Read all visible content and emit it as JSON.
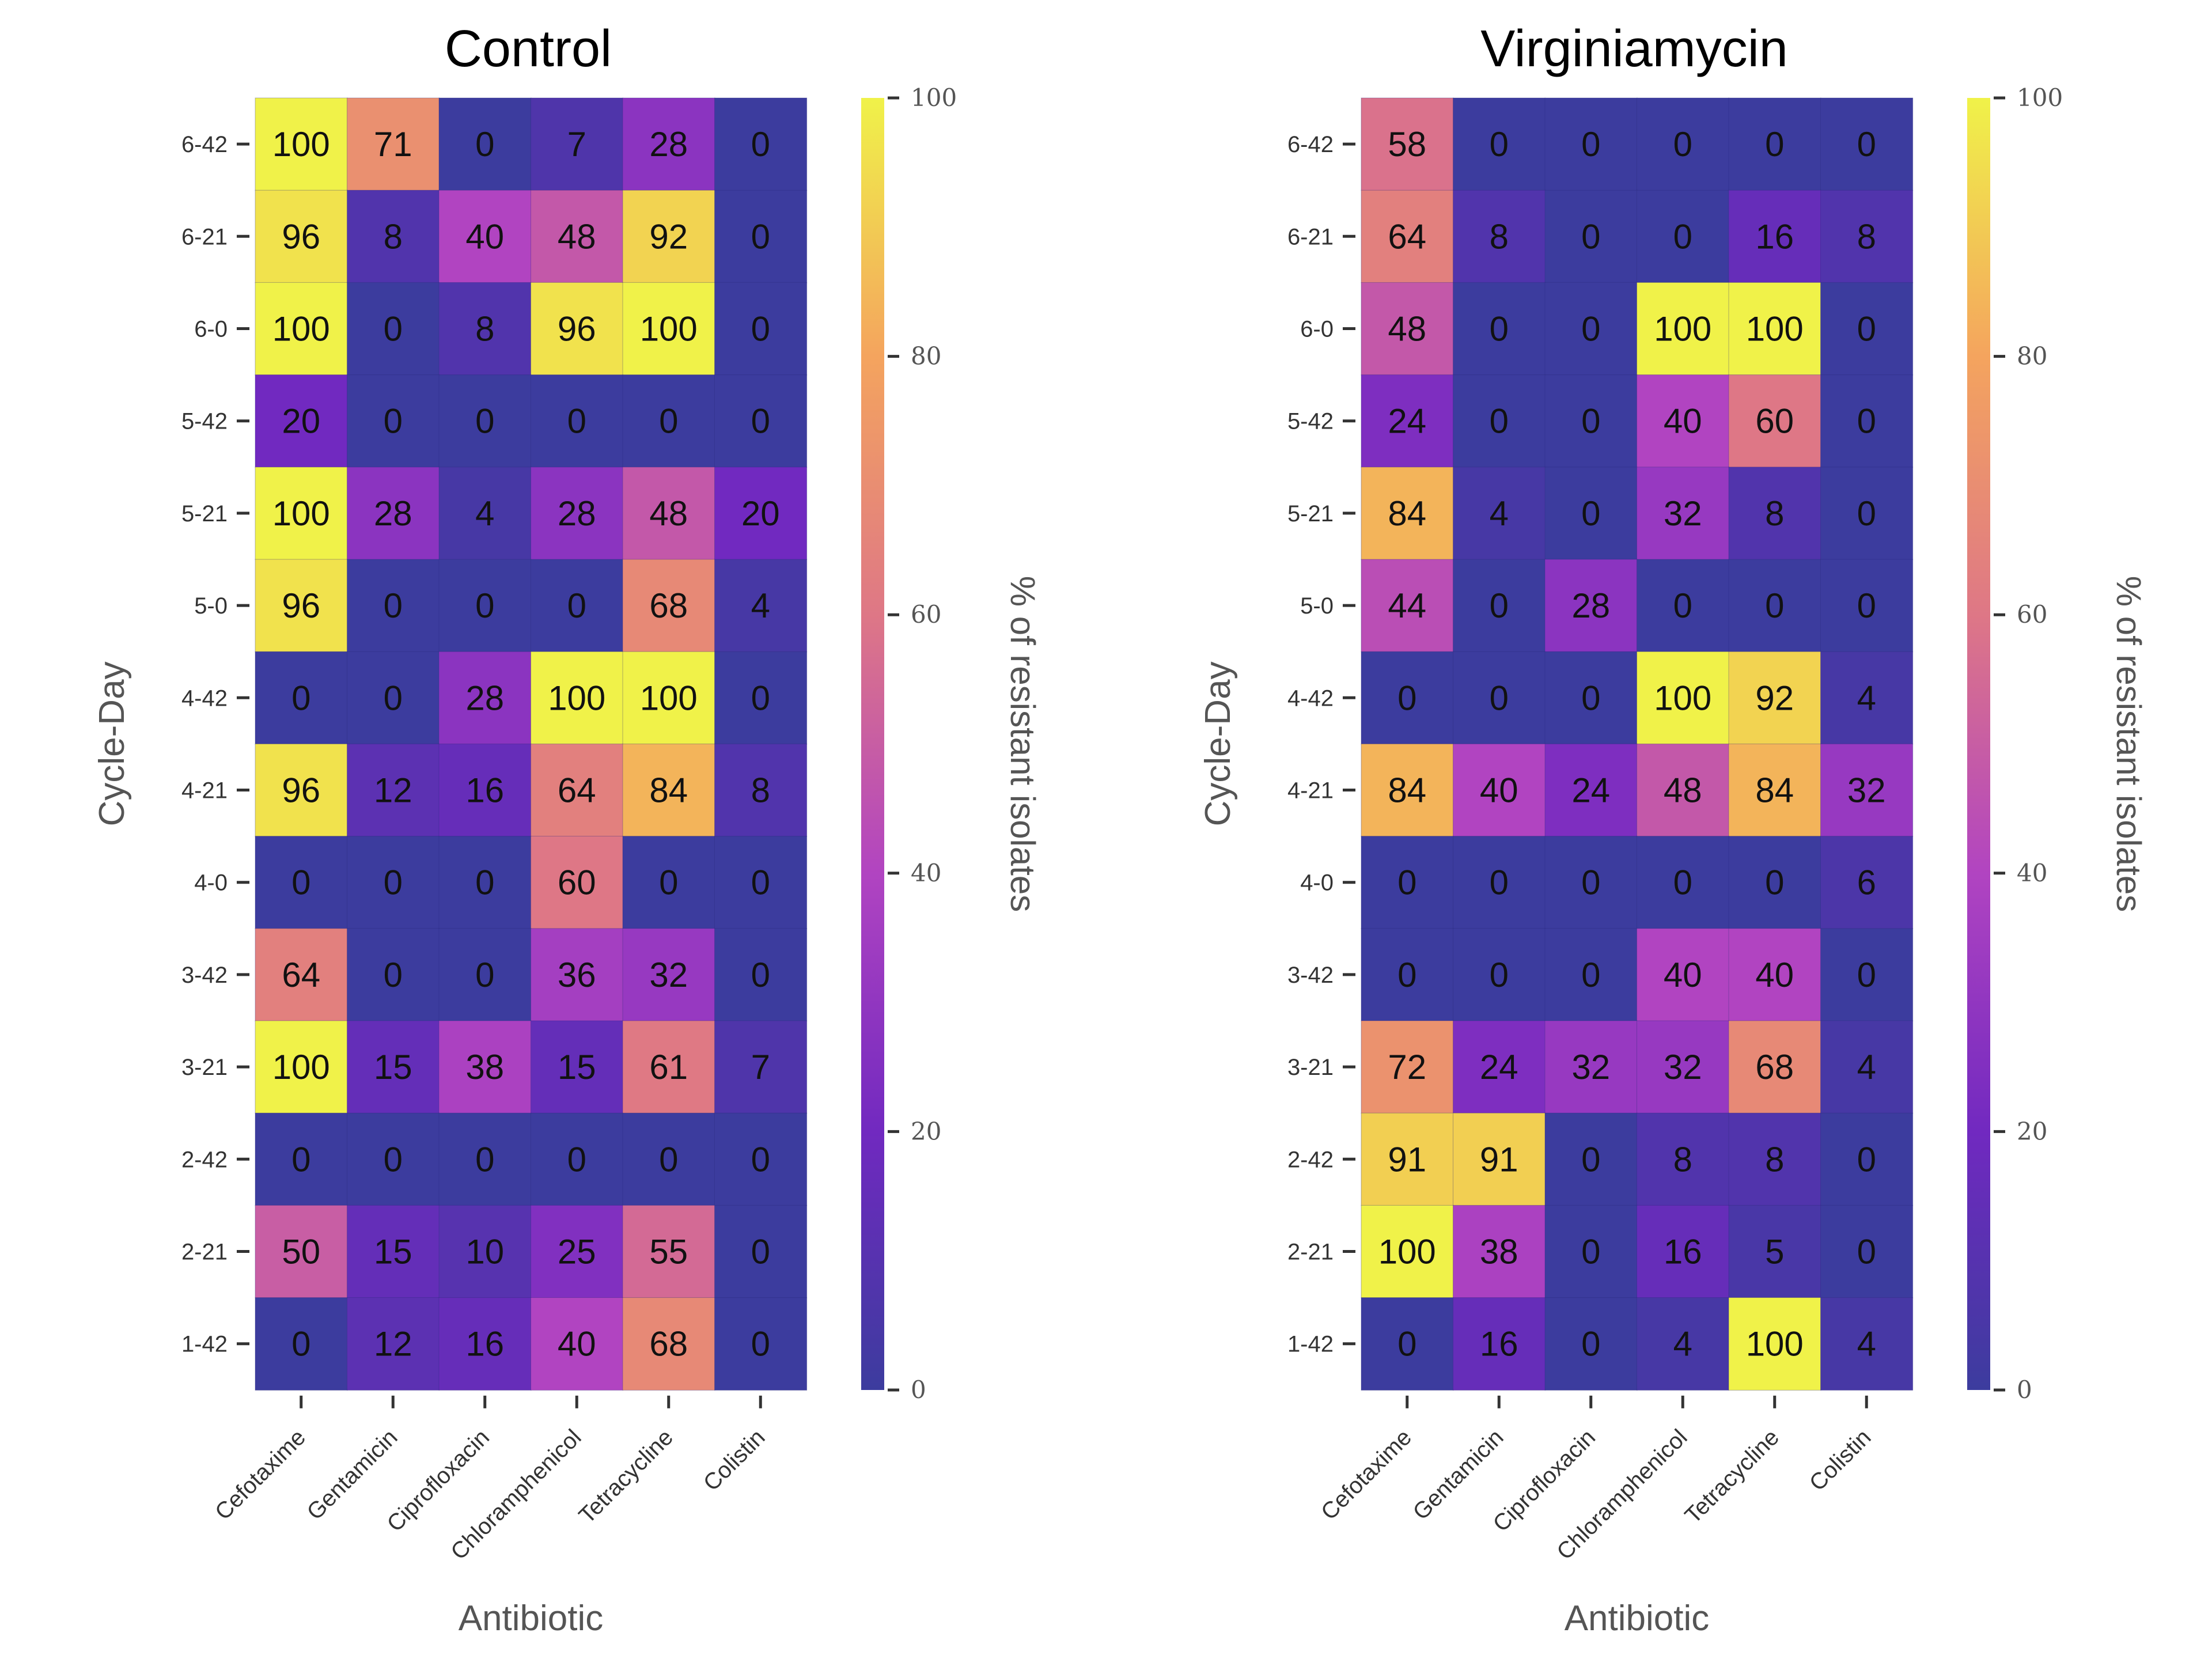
{
  "chart_data": [
    {
      "type": "heatmap",
      "title": "Control",
      "xlabel": "Antibiotic",
      "ylabel": "Cycle-Day",
      "x_categories": [
        "Cefotaxime",
        "Gentamicin",
        "Ciprofloxacin",
        "Chloramphenicol",
        "Tetracycline",
        "Colistin"
      ],
      "y_categories": [
        "6-42",
        "6-21",
        "6-0",
        "5-42",
        "5-21",
        "5-0",
        "4-42",
        "4-21",
        "4-0",
        "3-42",
        "3-21",
        "2-42",
        "2-21",
        "1-42"
      ],
      "values": [
        [
          100,
          71,
          0,
          7,
          28,
          0
        ],
        [
          96,
          8,
          40,
          48,
          92,
          0
        ],
        [
          100,
          0,
          8,
          96,
          100,
          0
        ],
        [
          20,
          0,
          0,
          0,
          0,
          0
        ],
        [
          100,
          28,
          4,
          28,
          48,
          20
        ],
        [
          96,
          0,
          0,
          0,
          68,
          4
        ],
        [
          0,
          0,
          28,
          100,
          100,
          0
        ],
        [
          96,
          12,
          16,
          64,
          84,
          8
        ],
        [
          0,
          0,
          0,
          60,
          0,
          0
        ],
        [
          64,
          0,
          0,
          36,
          32,
          0
        ],
        [
          100,
          15,
          38,
          15,
          61,
          7
        ],
        [
          0,
          0,
          0,
          0,
          0,
          0
        ],
        [
          50,
          15,
          10,
          25,
          55,
          0
        ],
        [
          0,
          12,
          16,
          40,
          68,
          0
        ]
      ],
      "colorbar": {
        "label": "% of resistant isolates",
        "range": [
          0,
          100
        ],
        "ticks": [
          0,
          20,
          40,
          60,
          80,
          100
        ],
        "colormap": "plasma",
        "stops": [
          "#3c3c9e",
          "#7129c0",
          "#b144c1",
          "#de7786",
          "#f4a45e",
          "#f0f249"
        ]
      }
    },
    {
      "type": "heatmap",
      "title": "Virginiamycin",
      "xlabel": "Antibiotic",
      "ylabel": "Cycle-Day",
      "x_categories": [
        "Cefotaxime",
        "Gentamicin",
        "Ciprofloxacin",
        "Chloramphenicol",
        "Tetracycline",
        "Colistin"
      ],
      "y_categories": [
        "6-42",
        "6-21",
        "6-0",
        "5-42",
        "5-21",
        "5-0",
        "4-42",
        "4-21",
        "4-0",
        "3-42",
        "3-21",
        "2-42",
        "2-21",
        "1-42"
      ],
      "values": [
        [
          58,
          0,
          0,
          0,
          0,
          0
        ],
        [
          64,
          8,
          0,
          0,
          16,
          8
        ],
        [
          48,
          0,
          0,
          100,
          100,
          0
        ],
        [
          24,
          0,
          0,
          40,
          60,
          0
        ],
        [
          84,
          4,
          0,
          32,
          8,
          0
        ],
        [
          44,
          0,
          28,
          0,
          0,
          0
        ],
        [
          0,
          0,
          0,
          100,
          92,
          4
        ],
        [
          84,
          40,
          24,
          48,
          84,
          32
        ],
        [
          0,
          0,
          0,
          0,
          0,
          6
        ],
        [
          0,
          0,
          0,
          40,
          40,
          0
        ],
        [
          72,
          24,
          32,
          32,
          68,
          4
        ],
        [
          91,
          91,
          0,
          8,
          8,
          0
        ],
        [
          100,
          38,
          0,
          16,
          5,
          0
        ],
        [
          0,
          16,
          0,
          4,
          100,
          4
        ]
      ],
      "colorbar": {
        "label": "% of resistant isolates",
        "range": [
          0,
          100
        ],
        "ticks": [
          0,
          20,
          40,
          60,
          80,
          100
        ],
        "colormap": "plasma",
        "stops": [
          "#3c3c9e",
          "#7129c0",
          "#b144c1",
          "#de7786",
          "#f4a45e",
          "#f0f249"
        ]
      }
    }
  ]
}
